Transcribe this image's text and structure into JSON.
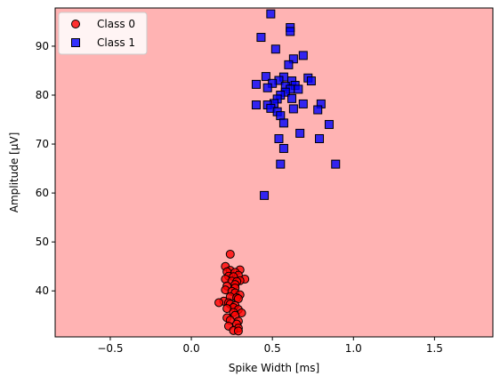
{
  "chart_data": {
    "type": "scatter",
    "xlabel": "Spike Width [ms]",
    "ylabel": "Amplitude [μV]",
    "xlim": [
      -0.84,
      1.86
    ],
    "ylim": [
      30.6,
      97.8
    ],
    "xticks": [
      -0.5,
      0.0,
      0.5,
      1.0,
      1.5
    ],
    "xtick_labels": [
      "−0.5",
      "0.0",
      "0.5",
      "1.0",
      "1.5"
    ],
    "yticks": [
      40,
      50,
      60,
      70,
      80,
      90
    ],
    "ytick_labels": [
      "40",
      "50",
      "60",
      "70",
      "80",
      "90"
    ],
    "grid": false,
    "legend": "upper-left",
    "background": "decision region predicting Class 0",
    "colors": {
      "region": "#ffb3b3",
      "class0": "#ff0000",
      "class1": "#0000ff",
      "edge": "#000000"
    },
    "series": [
      {
        "name": "Class 0",
        "marker": "circle",
        "points": [
          [
            0.24,
            47.5
          ],
          [
            0.21,
            45.0
          ],
          [
            0.24,
            44.2
          ],
          [
            0.3,
            44.3
          ],
          [
            0.22,
            43.9
          ],
          [
            0.27,
            43.8
          ],
          [
            0.29,
            43.2
          ],
          [
            0.23,
            43.0
          ],
          [
            0.26,
            42.9
          ],
          [
            0.33,
            42.4
          ],
          [
            0.3,
            42.1
          ],
          [
            0.21,
            42.4
          ],
          [
            0.25,
            42.0
          ],
          [
            0.28,
            41.9
          ],
          [
            0.27,
            41.3
          ],
          [
            0.22,
            41.0
          ],
          [
            0.27,
            40.6
          ],
          [
            0.21,
            40.2
          ],
          [
            0.25,
            39.9
          ],
          [
            0.27,
            39.6
          ],
          [
            0.3,
            39.2
          ],
          [
            0.24,
            38.8
          ],
          [
            0.28,
            38.6
          ],
          [
            0.29,
            38.4
          ],
          [
            0.2,
            37.9
          ],
          [
            0.23,
            37.6
          ],
          [
            0.17,
            37.6
          ],
          [
            0.24,
            37.3
          ],
          [
            0.27,
            37.0
          ],
          [
            0.26,
            36.6
          ],
          [
            0.22,
            36.4
          ],
          [
            0.29,
            36.2
          ],
          [
            0.31,
            35.5
          ],
          [
            0.26,
            35.6
          ],
          [
            0.27,
            35.0
          ],
          [
            0.22,
            34.5
          ],
          [
            0.24,
            34.0
          ],
          [
            0.29,
            33.8
          ],
          [
            0.28,
            33.2
          ],
          [
            0.23,
            32.8
          ],
          [
            0.29,
            32.4
          ],
          [
            0.26,
            31.9
          ],
          [
            0.29,
            31.8
          ]
        ]
      },
      {
        "name": "Class 1",
        "marker": "square",
        "points": [
          [
            0.49,
            96.6
          ],
          [
            0.61,
            93.8
          ],
          [
            0.61,
            93.0
          ],
          [
            0.43,
            91.8
          ],
          [
            0.52,
            89.4
          ],
          [
            0.69,
            88.1
          ],
          [
            0.63,
            87.4
          ],
          [
            0.6,
            86.2
          ],
          [
            0.46,
            83.8
          ],
          [
            0.57,
            83.7
          ],
          [
            0.72,
            83.5
          ],
          [
            0.74,
            82.9
          ],
          [
            0.62,
            82.9
          ],
          [
            0.54,
            83.0
          ],
          [
            0.5,
            82.4
          ],
          [
            0.4,
            82.2
          ],
          [
            0.64,
            82.0
          ],
          [
            0.58,
            81.8
          ],
          [
            0.47,
            81.5
          ],
          [
            0.61,
            81.2
          ],
          [
            0.66,
            81.2
          ],
          [
            0.58,
            80.6
          ],
          [
            0.55,
            80.0
          ],
          [
            0.62,
            79.3
          ],
          [
            0.53,
            79.2
          ],
          [
            0.51,
            78.3
          ],
          [
            0.69,
            78.2
          ],
          [
            0.8,
            78.2
          ],
          [
            0.4,
            78.0
          ],
          [
            0.47,
            78.0
          ],
          [
            0.49,
            77.3
          ],
          [
            0.63,
            77.2
          ],
          [
            0.78,
            77.0
          ],
          [
            0.53,
            76.6
          ],
          [
            0.55,
            75.8
          ],
          [
            0.57,
            74.3
          ],
          [
            0.85,
            74.0
          ],
          [
            0.67,
            72.2
          ],
          [
            0.54,
            71.1
          ],
          [
            0.79,
            71.1
          ],
          [
            0.57,
            69.1
          ],
          [
            0.55,
            65.9
          ],
          [
            0.89,
            65.9
          ],
          [
            0.45,
            59.5
          ]
        ]
      }
    ]
  }
}
